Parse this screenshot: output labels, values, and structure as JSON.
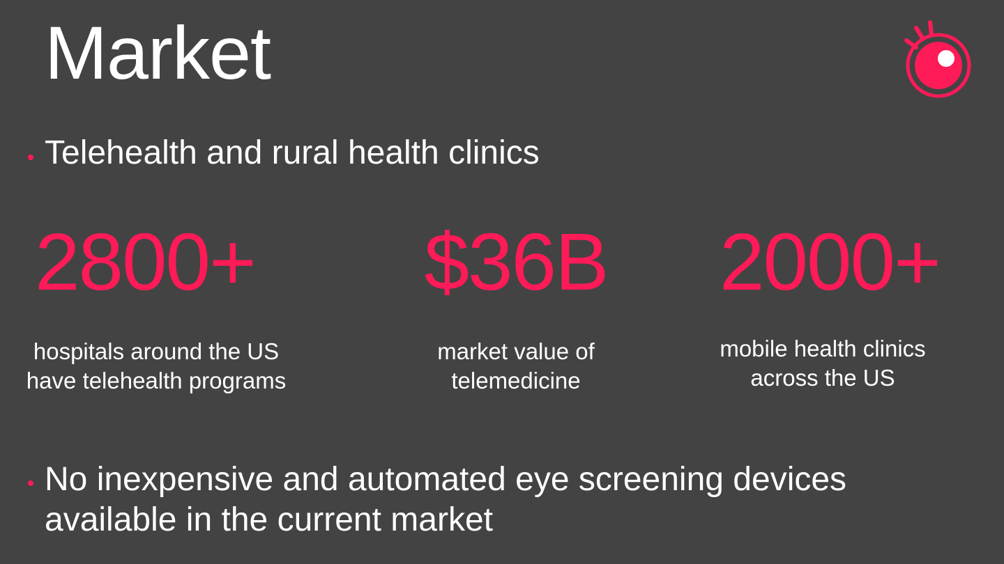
{
  "slide": {
    "title": "Market",
    "bullets": [
      "Telehealth and rural health clinics",
      "No inexpensive and automated eye screening devices available in the current market"
    ],
    "stats": [
      {
        "value": "2800+",
        "description": "hospitals around the US have telehealth programs"
      },
      {
        "value": "$36B",
        "description": "market value of telemedicine"
      },
      {
        "value": "2000+",
        "description": "mobile health clinics across the US"
      }
    ]
  },
  "colors": {
    "background": "#434343",
    "accent": "#ff1a58",
    "text": "#ffffff"
  },
  "icons": {
    "logo": "eye-logo-icon",
    "bullet": "bullet-dot-icon"
  }
}
